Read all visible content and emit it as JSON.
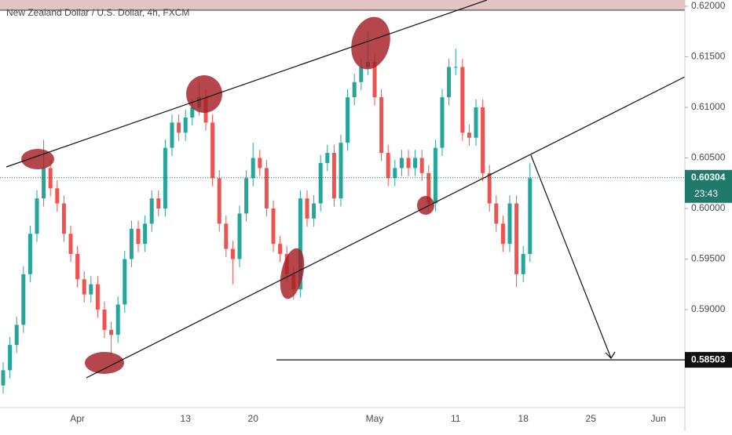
{
  "chart_data": {
    "type": "candlestick",
    "title": "New Zealand Dollar / U.S. Dollar, 4h, FXCM",
    "categories": [
      null,
      null,
      null,
      null,
      null,
      null,
      null,
      null,
      null,
      null,
      null,
      "Apr",
      null,
      null,
      null,
      null,
      null,
      null,
      null,
      null,
      null,
      null,
      null,
      null,
      null,
      null,
      null,
      "13",
      null,
      null,
      null,
      null,
      null,
      null,
      null,
      null,
      null,
      "20",
      null,
      null,
      null,
      null,
      null,
      null,
      null,
      null,
      null,
      null,
      null,
      null,
      null,
      null,
      null,
      null,
      null,
      "May",
      null,
      null,
      null,
      null,
      null,
      null,
      null,
      null,
      null,
      null,
      null,
      "11",
      null,
      null,
      null,
      null,
      null,
      null,
      null,
      null,
      null,
      "18",
      null,
      null,
      null,
      null,
      null,
      null,
      null,
      null,
      null,
      "25",
      null,
      null,
      null,
      null,
      null,
      null,
      null,
      null,
      null,
      "Jun"
    ],
    "open": [
      0.5825,
      0.584,
      0.5865,
      0.5885,
      0.5935,
      0.5975,
      0.601,
      0.604,
      0.602,
      0.6005,
      0.5975,
      0.5955,
      0.593,
      0.5915,
      0.5925,
      0.59,
      0.588,
      0.5875,
      0.5905,
      0.595,
      0.598,
      0.5965,
      0.5985,
      0.601,
      0.6,
      0.606,
      0.6085,
      0.6075,
      0.609,
      0.61,
      0.611,
      0.6085,
      0.603,
      0.5985,
      0.596,
      0.595,
      0.5995,
      0.603,
      0.605,
      0.604,
      0.6,
      0.5965,
      0.5955,
      0.5935,
      0.592,
      0.601,
      0.599,
      0.6005,
      0.6045,
      0.6055,
      0.601,
      0.6065,
      0.611,
      0.6125,
      0.614,
      0.6145,
      0.611,
      0.6055,
      0.603,
      0.604,
      0.605,
      0.604,
      0.605,
      0.6035,
      0.6005,
      0.606,
      0.611,
      0.614,
      0.614,
      0.6075,
      0.607,
      0.61,
      0.6035,
      0.6005,
      0.5985,
      0.5965,
      0.6005,
      0.5935,
      0.5955,
      null,
      null,
      null,
      null,
      null,
      null,
      null,
      null,
      null,
      null,
      null,
      null,
      null,
      null,
      null,
      null,
      null,
      null,
      null
    ],
    "high": [
      0.5848,
      0.5873,
      0.5893,
      0.5943,
      0.5983,
      0.6018,
      0.6068,
      0.6048,
      0.6028,
      0.6013,
      0.5983,
      0.5963,
      0.5938,
      0.5933,
      0.5933,
      0.5908,
      0.5888,
      0.5913,
      0.5958,
      0.5988,
      0.5988,
      0.5993,
      0.6018,
      0.6018,
      0.6068,
      0.6093,
      0.6093,
      0.6098,
      0.6108,
      0.6125,
      0.6118,
      0.6093,
      0.6038,
      0.5993,
      0.5968,
      0.6003,
      0.6038,
      0.6065,
      0.6058,
      0.6048,
      0.6008,
      0.5973,
      0.5963,
      0.5943,
      0.6018,
      0.6018,
      0.6013,
      0.6053,
      0.6063,
      0.6063,
      0.6073,
      0.6118,
      0.6133,
      0.6148,
      0.6175,
      0.6153,
      0.6118,
      0.6063,
      0.6048,
      0.6058,
      0.6058,
      0.6058,
      0.6058,
      0.6043,
      0.6068,
      0.6118,
      0.6148,
      0.6158,
      0.6148,
      0.6083,
      0.6108,
      0.6108,
      0.6043,
      0.6013,
      0.5993,
      0.6013,
      0.6013,
      0.5963,
      0.6045,
      null,
      null,
      null,
      null,
      null,
      null,
      null,
      null,
      null,
      null,
      null,
      null,
      null,
      null,
      null,
      null,
      null,
      null,
      null
    ],
    "low": [
      0.5817,
      0.5832,
      0.5857,
      0.5877,
      0.5927,
      0.5967,
      0.6002,
      0.6012,
      0.5997,
      0.5967,
      0.5947,
      0.5922,
      0.5907,
      0.5907,
      0.5892,
      0.5872,
      0.5855,
      0.5867,
      0.5897,
      0.5942,
      0.5957,
      0.5957,
      0.5977,
      0.5992,
      0.5992,
      0.6052,
      0.6067,
      0.6067,
      0.6082,
      0.6092,
      0.6077,
      0.6022,
      0.5977,
      0.5952,
      0.5925,
      0.5942,
      0.5987,
      0.6022,
      0.6032,
      0.5992,
      0.5957,
      0.5947,
      0.5927,
      0.591,
      0.5912,
      0.5982,
      0.5982,
      0.5997,
      0.6037,
      0.6002,
      0.6002,
      0.6057,
      0.6102,
      0.6117,
      0.6132,
      0.6102,
      0.6047,
      0.6022,
      0.6022,
      0.6032,
      0.6032,
      0.6032,
      0.6027,
      0.5997,
      0.5997,
      0.6052,
      0.6102,
      0.6132,
      0.6067,
      0.6062,
      0.6062,
      0.6027,
      0.5997,
      0.5977,
      0.5957,
      0.5957,
      0.5922,
      0.5927,
      0.5947,
      null,
      null,
      null,
      null,
      null,
      null,
      null,
      null,
      null,
      null,
      null,
      null,
      null,
      null,
      null,
      null,
      null,
      null,
      null
    ],
    "close": [
      0.584,
      0.5865,
      0.5885,
      0.5935,
      0.5975,
      0.601,
      0.604,
      0.602,
      0.6005,
      0.5975,
      0.5955,
      0.593,
      0.5915,
      0.5925,
      0.59,
      0.588,
      0.5875,
      0.5905,
      0.595,
      0.598,
      0.5965,
      0.5985,
      0.601,
      0.6,
      0.606,
      0.6085,
      0.6075,
      0.609,
      0.61,
      0.611,
      0.6085,
      0.603,
      0.5985,
      0.596,
      0.595,
      0.5995,
      0.603,
      0.605,
      0.604,
      0.6,
      0.5965,
      0.5955,
      0.5935,
      0.592,
      0.601,
      0.599,
      0.6005,
      0.6045,
      0.6055,
      0.601,
      0.6065,
      0.611,
      0.6125,
      0.614,
      0.6145,
      0.611,
      0.6055,
      0.603,
      0.604,
      0.605,
      0.604,
      0.605,
      0.6035,
      0.6005,
      0.606,
      0.611,
      0.614,
      0.614,
      0.6075,
      0.607,
      0.61,
      0.6035,
      0.6005,
      0.5985,
      0.5965,
      0.6005,
      0.5935,
      0.5955,
      0.603,
      null,
      null,
      null,
      null,
      null,
      null,
      null,
      null,
      null,
      null,
      null,
      null,
      null,
      null,
      null,
      null,
      null,
      null,
      null
    ],
    "up_color": "#26a69a",
    "down_color": "#ef5350",
    "ylim": [
      0.58031,
      0.62062
    ],
    "yticks": [
      {
        "value": 0.59,
        "label": "0.59000"
      },
      {
        "value": 0.595,
        "label": "0.59500"
      },
      {
        "value": 0.6,
        "label": "0.60000"
      },
      {
        "value": 0.605,
        "label": "0.60500"
      },
      {
        "value": 0.61,
        "label": "0.61000"
      },
      {
        "value": 0.615,
        "label": "0.61500"
      },
      {
        "value": 0.62,
        "label": "0.62000"
      }
    ],
    "last_price": {
      "value": 0.60304,
      "label": "0.60304"
    },
    "countdown": "23:43",
    "target_level": {
      "value": 0.58503,
      "label": "0.58503"
    }
  }
}
